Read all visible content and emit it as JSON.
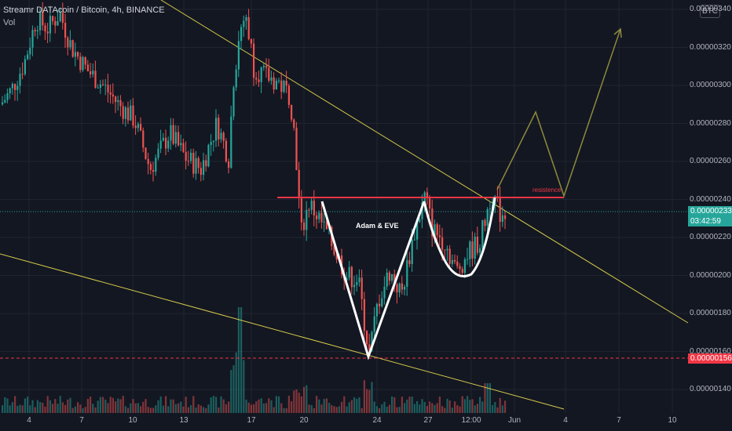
{
  "header": {
    "title": "Streamr DATAcoin / Bitcoin, 4h, BINANCE",
    "vol_label": "Vol"
  },
  "scale_badge": "BTC",
  "price_axis": {
    "labels": [
      "0.00000340",
      "0.00000320",
      "0.00000300",
      "0.00000280",
      "0.00000260",
      "0.00000240",
      "0.00000220",
      "0.00000200",
      "0.00000180",
      "0.00000160",
      "0.00000140"
    ],
    "current_price": "0.00000233",
    "countdown": "03:42:59",
    "marked_low": "0.00000156"
  },
  "time_axis": {
    "labels": [
      "4",
      "7",
      "10",
      "13",
      "17",
      "20",
      "24",
      "27",
      "12:00",
      "Jun",
      "4",
      "7",
      "10"
    ]
  },
  "annotations": {
    "pattern_label": "Adam & EVE",
    "resistance_label": "resistence"
  },
  "colors": {
    "background": "#131722",
    "up": "#26a69a",
    "down": "#ef5350",
    "trendline": "#d4c84a",
    "resistance": "#f23645",
    "pattern": "#ffffff",
    "projection": "#8d8a3c"
  },
  "chart_data": {
    "type": "candlestick",
    "pair": "Streamr DATAcoin / Bitcoin",
    "interval": "4h",
    "exchange": "BINANCE",
    "y_unit": "BTC",
    "ylim": [
      1.3e-06,
      3.4e-06
    ],
    "resistance_level": 2.4e-06,
    "adam_bottom": 1.56e-06,
    "eve_bottom": 1.98e-06,
    "last_price": 2.33e-06,
    "projection_targets": [
      2.85e-06,
      3.31e-06
    ],
    "grid": true
  }
}
